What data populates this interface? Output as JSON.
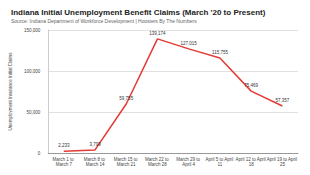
{
  "chart_data": {
    "type": "line",
    "title": "Indiana Initial Unemployment Benefit Claims (March '20 to Present)",
    "subtitle": "Source: Indiana Department of Workforce Development | Hoosiers By The Numbers",
    "y_label": "Unemployment Insurance Initial Claims",
    "categories": [
      "March 1 to March 7",
      "March 8 to March 14",
      "March 15 to March 21",
      "March 22 to March 28",
      "March 29 to April 4",
      "April 5 to April 11",
      "April 12 to April 18",
      "April 19 to April 25"
    ],
    "values": [
      2233,
      3799,
      59755,
      139174,
      127015,
      115755,
      75469,
      57357
    ],
    "value_labels": [
      "2,233",
      "3,799",
      "59,755",
      "139,174",
      "127,015",
      "115,755",
      "75,469",
      "57,357"
    ],
    "color": "#e53935",
    "ylim": [
      0,
      150000
    ],
    "yticks": [
      0,
      {
        "value": 50000,
        "label": "50,000"
      },
      {
        "value": 100000,
        "label": "100,000"
      },
      {
        "value": 150000,
        "label": "150,000"
      }
    ],
    "grid": true,
    "data_labels": true
  }
}
